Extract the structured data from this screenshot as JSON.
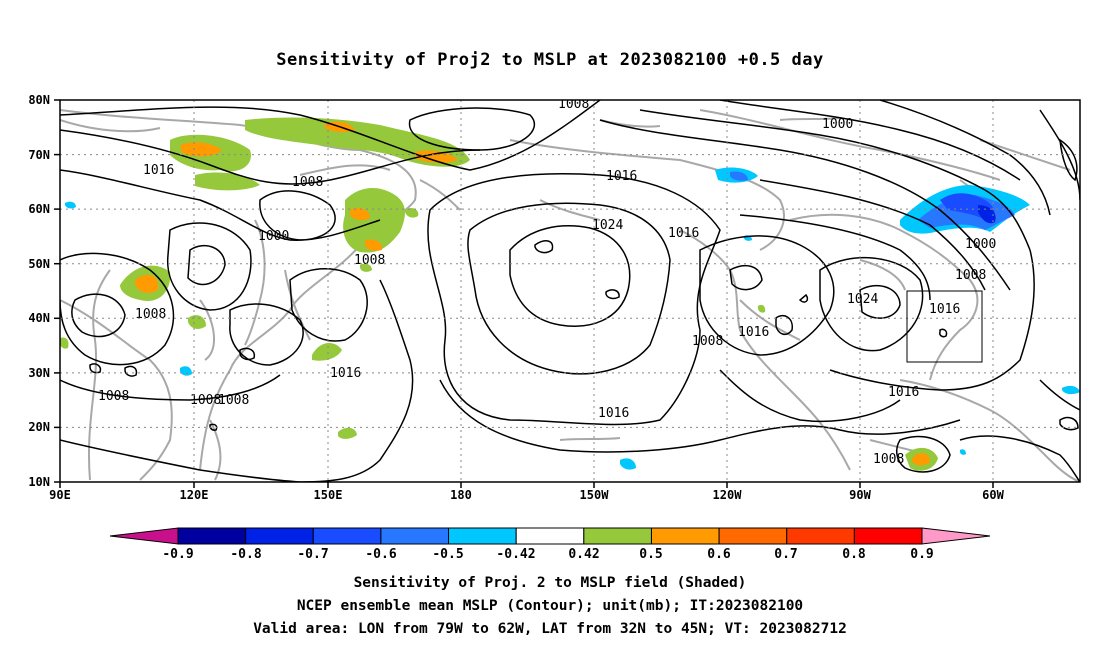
{
  "title": "Sensitivity of Proj2 to MSLP at 2023082100 +0.5 day",
  "lat_ticks": [
    "80N",
    "70N",
    "60N",
    "50N",
    "40N",
    "30N",
    "20N",
    "10N"
  ],
  "lon_ticks": [
    "90E",
    "120E",
    "150E",
    "180",
    "150W",
    "120W",
    "90W",
    "60W"
  ],
  "contour_labels": [
    {
      "text": "1008"
    },
    {
      "text": "1000"
    },
    {
      "text": "1016"
    },
    {
      "text": "1008"
    },
    {
      "text": "1000"
    },
    {
      "text": "1008"
    },
    {
      "text": "1016"
    },
    {
      "text": "1024"
    },
    {
      "text": "1016"
    },
    {
      "text": "1008"
    },
    {
      "text": "1016"
    },
    {
      "text": "1000"
    },
    {
      "text": "1008"
    },
    {
      "text": "1024"
    },
    {
      "text": "1016"
    },
    {
      "text": "1008"
    },
    {
      "text": "1016"
    },
    {
      "text": "1008"
    },
    {
      "text": "1008"
    },
    {
      "text": "1008"
    },
    {
      "text": "1016"
    },
    {
      "text": "1016"
    },
    {
      "text": "1008"
    }
  ],
  "colorbar": {
    "labels": [
      "-0.9",
      "-0.8",
      "-0.7",
      "-0.6",
      "-0.5",
      "-0.42",
      "0.42",
      "0.5",
      "0.6",
      "0.7",
      "0.8",
      "0.9"
    ],
    "colors": [
      "#0000a0",
      "#0022e6",
      "#1a4cff",
      "#2878ff",
      "#00c8ff",
      "#ffffff",
      "#96c83c",
      "#ff9a00",
      "#ff6a00",
      "#ff3a00",
      "#ff0000"
    ],
    "low_end_color": "#c8108c",
    "high_end_color": "#ff9ac8"
  },
  "captions": {
    "line1": "Sensitivity of Proj. 2 to MSLP field (Shaded)",
    "line2": "NCEP ensemble mean MSLP (Contour); unit(mb); IT:2023082100",
    "line3": "Valid area: LON from 79W to 62W, LAT from 32N to 45N; VT: 2023082712"
  }
}
